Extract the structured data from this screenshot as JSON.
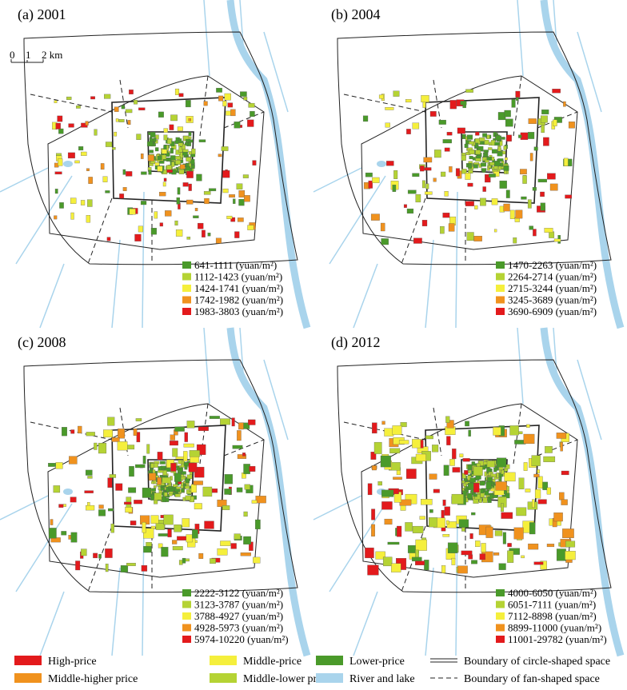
{
  "panels": [
    {
      "title": "(a) 2001",
      "legend": [
        {
          "label": "641-1111 (yuan/m²)",
          "color": "#4a9a2a"
        },
        {
          "label": "1112-1423 (yuan/m²)",
          "color": "#b5d334"
        },
        {
          "label": "1424-1741 (yuan/m²)",
          "color": "#f5ef3c"
        },
        {
          "label": "1742-1982 (yuan/m²)",
          "color": "#f0921e"
        },
        {
          "label": "1983-3803 (yuan/m²)",
          "color": "#e31a1c"
        }
      ]
    },
    {
      "title": "(b) 2004",
      "legend": [
        {
          "label": "1470-2263 (yuan/m²)",
          "color": "#4a9a2a"
        },
        {
          "label": "2264-2714 (yuan/m²)",
          "color": "#b5d334"
        },
        {
          "label": "2715-3244 (yuan/m²)",
          "color": "#f5ef3c"
        },
        {
          "label": "3245-3689 (yuan/m²)",
          "color": "#f0921e"
        },
        {
          "label": "3690-6909 (yuan/m²)",
          "color": "#e31a1c"
        }
      ]
    },
    {
      "title": "(c) 2008",
      "legend": [
        {
          "label": "2222-3122 (yuan/m²)",
          "color": "#4a9a2a"
        },
        {
          "label": "3123-3787 (yuan/m²)",
          "color": "#b5d334"
        },
        {
          "label": "3788-4927 (yuan/m²)",
          "color": "#f5ef3c"
        },
        {
          "label": "4928-5973 (yuan/m²)",
          "color": "#f0921e"
        },
        {
          "label": "5974-10220 (yuan/m²)",
          "color": "#e31a1c"
        }
      ]
    },
    {
      "title": "(d) 2012",
      "legend": [
        {
          "label": "4000-6050 (yuan/m²)",
          "color": "#4a9a2a"
        },
        {
          "label": "6051-7111 (yuan/m²)",
          "color": "#b5d334"
        },
        {
          "label": "7112-8898 (yuan/m²)",
          "color": "#f5ef3c"
        },
        {
          "label": "8899-11000 (yuan/m²)",
          "color": "#f0921e"
        },
        {
          "label": "11001-29782 (yuan/m²)",
          "color": "#e31a1c"
        }
      ]
    }
  ],
  "scale_bar": {
    "labels": [
      "0",
      "1",
      "2 km"
    ]
  },
  "legend": [
    {
      "label": "High-price",
      "color": "#e31a1c"
    },
    {
      "label": "Middle-higher price",
      "color": "#f0921e"
    },
    {
      "label": "Middle-price",
      "color": "#f5ef3c"
    },
    {
      "label": "Middle-lower price",
      "color": "#b5d334"
    },
    {
      "label": "Lower-price",
      "color": "#4a9a2a"
    },
    {
      "label": "River and lake",
      "color": "#a9d4ec"
    },
    {
      "label": "Boundary of circle-shaped space"
    },
    {
      "label": "Boundary of fan-shaped space"
    }
  ]
}
